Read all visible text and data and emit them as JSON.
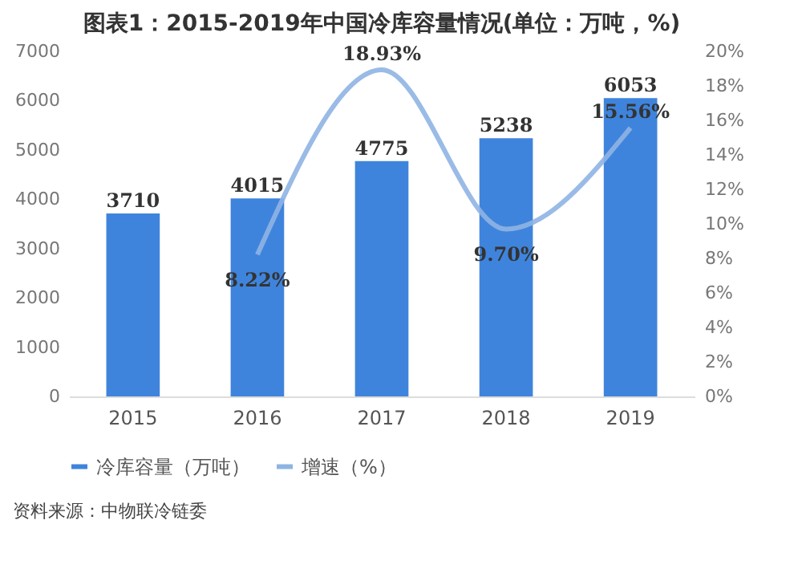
{
  "chart_data": {
    "type": "bar",
    "title": "图表1：2015-2019年中国冷库容量情况(单位：万吨，%)",
    "categories": [
      "2015",
      "2016",
      "2017",
      "2018",
      "2019"
    ],
    "series": [
      {
        "name": "冷库容量（万吨）",
        "type": "bar",
        "color": "#3f84dc",
        "values": [
          3710,
          4015,
          4775,
          5238,
          6053
        ]
      },
      {
        "name": "增速（%）",
        "type": "line",
        "axis": "y2",
        "color": "#8fb4e3",
        "values": [
          null,
          8.22,
          18.93,
          9.7,
          15.56
        ],
        "value_labels": [
          null,
          "8.22%",
          "18.93%",
          "9.70%",
          "15.56%"
        ]
      }
    ],
    "data_labels": true,
    "ylim": [
      0,
      7000
    ],
    "yticks": [
      0,
      1000,
      2000,
      3000,
      4000,
      5000,
      6000,
      7000
    ],
    "y2lim": [
      0,
      20
    ],
    "y2ticks": [
      {
        "value": 0,
        "label": "0%"
      },
      {
        "value": 2,
        "label": "2%"
      },
      {
        "value": 4,
        "label": "4%"
      },
      {
        "value": 6,
        "label": "6%"
      },
      {
        "value": 8,
        "label": "8%"
      },
      {
        "value": 10,
        "label": "10%"
      },
      {
        "value": 12,
        "label": "12%"
      },
      {
        "value": 14,
        "label": "14%"
      },
      {
        "value": 16,
        "label": "16%"
      },
      {
        "value": 18,
        "label": "18%"
      },
      {
        "value": 20,
        "label": "20%"
      }
    ],
    "grid": false,
    "legend": "bottom",
    "annotations": [
      "资料来源：中物联冷链委"
    ]
  }
}
